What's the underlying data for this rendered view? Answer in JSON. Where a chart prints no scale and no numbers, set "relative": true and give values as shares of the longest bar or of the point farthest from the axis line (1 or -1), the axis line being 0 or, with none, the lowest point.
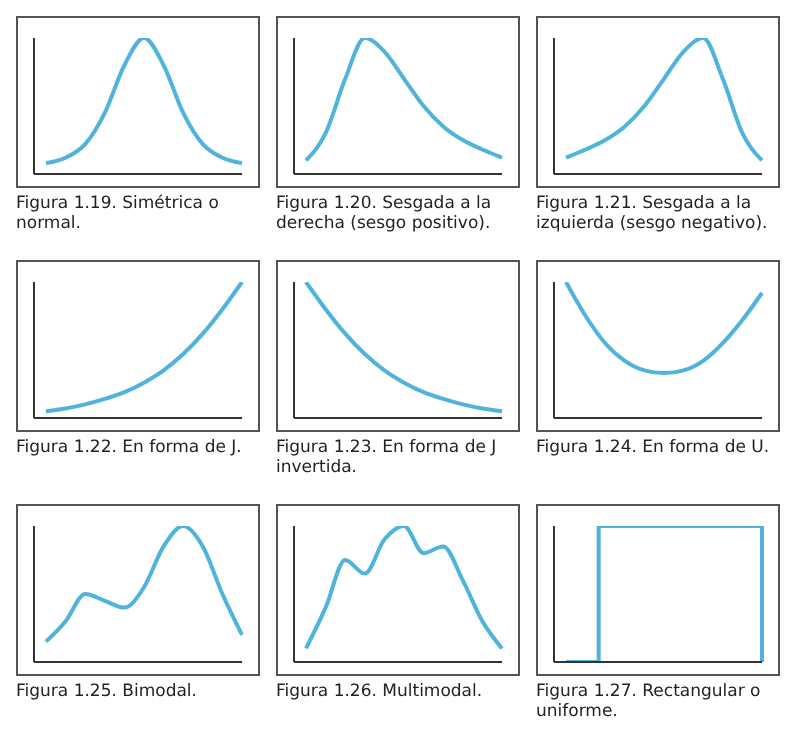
{
  "chart_data": [
    {
      "type": "line",
      "relative": true,
      "title": "Figura 1.19. Simétrica o normal.",
      "color": "#4fb3dc",
      "categories": [
        null,
        null,
        null,
        null,
        null,
        null,
        null,
        null,
        null,
        null,
        null
      ],
      "values": [
        0.08,
        0.12,
        0.22,
        0.45,
        0.8,
        1,
        0.8,
        0.45,
        0.22,
        0.12,
        0.08
      ]
    },
    {
      "type": "line",
      "relative": true,
      "title": "Figura 1.20. Sesgada a la derecha (sesgo positivo).",
      "color": "#4fb3dc",
      "categories": [
        null,
        null,
        null,
        null,
        null,
        null,
        null,
        null,
        null,
        null,
        null
      ],
      "values": [
        0.1,
        0.3,
        0.7,
        1,
        0.9,
        0.7,
        0.5,
        0.35,
        0.25,
        0.18,
        0.12
      ]
    },
    {
      "type": "line",
      "relative": true,
      "title": "Figura 1.21. Sesgada a la izquierda (sesgo negativo).",
      "color": "#4fb3dc",
      "categories": [
        null,
        null,
        null,
        null,
        null,
        null,
        null,
        null,
        null,
        null,
        null
      ],
      "values": [
        0.12,
        0.18,
        0.25,
        0.35,
        0.5,
        0.7,
        0.9,
        1,
        0.7,
        0.3,
        0.1
      ]
    },
    {
      "type": "line",
      "relative": true,
      "title": "Figura 1.22. En forma de J.",
      "color": "#4fb3dc",
      "categories": [
        null,
        null,
        null,
        null,
        null,
        null,
        null,
        null,
        null,
        null,
        null
      ],
      "values": [
        0.05,
        0.07,
        0.1,
        0.14,
        0.19,
        0.26,
        0.35,
        0.47,
        0.62,
        0.8,
        1
      ]
    },
    {
      "type": "line",
      "relative": true,
      "title": "Figura 1.23. En forma de J invertida.",
      "color": "#4fb3dc",
      "categories": [
        null,
        null,
        null,
        null,
        null,
        null,
        null,
        null,
        null,
        null,
        null
      ],
      "values": [
        1,
        0.8,
        0.62,
        0.47,
        0.35,
        0.26,
        0.19,
        0.14,
        0.1,
        0.07,
        0.05
      ]
    },
    {
      "type": "line",
      "relative": true,
      "title": "Figura 1.24. En forma de U.",
      "color": "#4fb3dc",
      "categories": [
        null,
        null,
        null,
        null,
        null,
        null,
        null,
        null,
        null,
        null,
        null
      ],
      "values": [
        1,
        0.75,
        0.55,
        0.42,
        0.35,
        0.33,
        0.35,
        0.42,
        0.55,
        0.72,
        0.92
      ]
    },
    {
      "type": "line",
      "relative": true,
      "title": "Figura 1.25. Bimodal.",
      "color": "#4fb3dc",
      "categories": [
        null,
        null,
        null,
        null,
        null,
        null,
        null,
        null,
        null,
        null,
        null
      ],
      "values": [
        0.15,
        0.3,
        0.5,
        0.45,
        0.4,
        0.55,
        0.85,
        1,
        0.85,
        0.5,
        0.2
      ]
    },
    {
      "type": "line",
      "relative": true,
      "title": "Figura 1.26. Multimodal.",
      "color": "#4fb3dc",
      "categories": [
        null,
        null,
        null,
        null,
        null,
        null,
        null,
        null,
        null,
        null,
        null
      ],
      "values": [
        0.1,
        0.4,
        0.75,
        0.65,
        0.9,
        1,
        0.8,
        0.85,
        0.6,
        0.3,
        0.1
      ]
    },
    {
      "type": "step",
      "relative": true,
      "title": "Figura 1.27. Rectangular o uniforme.",
      "color": "#4fb3dc",
      "categories": [
        null,
        null,
        null,
        null,
        null,
        null,
        null
      ],
      "values": [
        0,
        1,
        1,
        1,
        1,
        1,
        0
      ]
    }
  ]
}
